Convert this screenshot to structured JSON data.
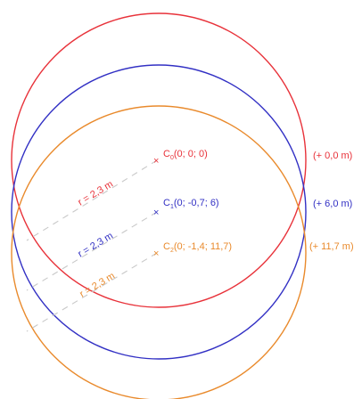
{
  "colors": {
    "c0": "#e8323a",
    "c1": "#3230c4",
    "c2": "#e98a2c",
    "radius_line": "#c8c8c8"
  },
  "circles": [
    {
      "id": "c0",
      "center": {
        "letter": "C",
        "index": "0",
        "coords": "(0; 0; 0)"
      },
      "offset": "(+ 0,0 m)",
      "radius": "r = 2,3 m"
    },
    {
      "id": "c1",
      "center": {
        "letter": "C",
        "index": "1",
        "coords": "(0; -0,7; 6)"
      },
      "offset": "(+ 6,0 m)",
      "radius": "r = 2,3 m"
    },
    {
      "id": "c2",
      "center": {
        "letter": "C",
        "index": "2",
        "coords": "(0; -1,4; 11,7)"
      },
      "offset": "(+ 11,7 m)",
      "radius": "r = 2,3 m"
    }
  ],
  "center_marker": "×"
}
